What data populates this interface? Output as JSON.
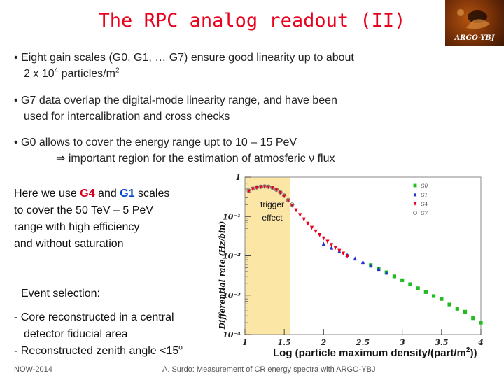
{
  "slide": {
    "title": "The RPC analog readout (II)",
    "logo_text": "ARGO-YBJ",
    "bullets": {
      "b1_line1_pre": "• Eight gain scales (G0, G1, … G7) ensure good linearity up to about",
      "b1_line2_pre": "2 x 10",
      "b1_line2_exp": "4",
      "b1_line2_post": " particles/m",
      "b1_line2_exp2": "2",
      "b2_line1": "• G7 data overlap the digital-mode linearity range, and have been",
      "b2_line2": "used for intercalibration and cross checks",
      "b3_line1": "• G0 allows to cover  the energy range upt to 10 – 15 PeV",
      "b3_line2_arrow": "⇒",
      "b3_line2": " important region for the estimation of atmosferic ν flux"
    },
    "left_block": {
      "p1_a": "Here we use ",
      "g4": "G4",
      "p1_b": " and ",
      "g1": "G1",
      "p1_c": " scales",
      "line2": "to cover the 50 TeV – 5 PeV",
      "line3": "range with high efficiency",
      "line4": "and without saturation"
    },
    "selection": {
      "heading": "Event selection:",
      "line1": "- Core reconstructed in a central",
      "line2": "detector fiducial area",
      "line3_pre": "- Reconstructed zenith angle <15",
      "line3_sup": "o"
    },
    "footer": {
      "left": "NOW-2014",
      "center": "A. Surdo: Measurement of CR energy spectra with ARGO-YBJ"
    },
    "xlabel_pre": "Log (particle maximum density/(part/m",
    "xlabel_sup": "2",
    "xlabel_post": "))"
  },
  "chart_data": {
    "type": "scatter",
    "ylabel": "Differential rate (Hz/bin)",
    "yscale": "log",
    "ylim": [
      0.0001,
      1
    ],
    "xlim": [
      1,
      4
    ],
    "x_ticks": [
      "1",
      "1.5",
      "2",
      "2.5",
      "3",
      "3.5",
      "4"
    ],
    "y_ticks": [
      "1",
      "10⁻¹",
      "10⁻²",
      "10⁻³",
      "10⁻⁴"
    ],
    "annotation": "trigger effect",
    "annotation_line1": "trigger",
    "annotation_line2": "effect",
    "shaded_region_x": [
      1.0,
      1.57
    ],
    "legend_placement": "top-right",
    "series": [
      {
        "name": "G0",
        "marker": "square",
        "color": "#22bb22",
        "x": [
          2.6,
          2.7,
          2.8,
          2.9,
          3.0,
          3.1,
          3.2,
          3.3,
          3.4,
          3.5,
          3.6,
          3.7,
          3.8,
          3.9,
          4.0
        ],
        "y": [
          0.0058,
          0.0047,
          0.0038,
          0.003,
          0.0024,
          0.0019,
          0.0015,
          0.0012,
          0.00095,
          0.0008,
          0.00058,
          0.00045,
          0.00038,
          0.00026,
          0.0002
        ]
      },
      {
        "name": "G1",
        "marker": "triangle",
        "color": "#2233cc",
        "x": [
          2.0,
          2.1,
          2.2,
          2.3,
          2.4,
          2.5,
          2.6,
          2.7,
          2.8
        ],
        "y": [
          0.02,
          0.016,
          0.013,
          0.0105,
          0.0085,
          0.0069,
          0.0056,
          0.0046,
          0.0037
        ]
      },
      {
        "name": "G4",
        "marker": "triangle-down",
        "color": "#e8001c",
        "x": [
          1.05,
          1.1,
          1.15,
          1.2,
          1.25,
          1.3,
          1.35,
          1.4,
          1.45,
          1.5,
          1.55,
          1.6,
          1.65,
          1.7,
          1.75,
          1.8,
          1.85,
          1.9,
          1.95,
          2.0,
          2.05,
          2.1,
          2.15,
          2.2,
          2.25,
          2.3
        ],
        "y": [
          0.44,
          0.5,
          0.54,
          0.56,
          0.57,
          0.56,
          0.53,
          0.47,
          0.4,
          0.33,
          0.25,
          0.19,
          0.145,
          0.11,
          0.085,
          0.066,
          0.052,
          0.042,
          0.034,
          0.028,
          0.023,
          0.019,
          0.016,
          0.0135,
          0.0115,
          0.0098
        ]
      },
      {
        "name": "G7",
        "marker": "circle-open",
        "color": "#777777",
        "x": [
          1.05,
          1.1,
          1.15,
          1.2,
          1.25,
          1.3,
          1.35,
          1.4,
          1.45,
          1.5,
          1.55,
          1.6
        ],
        "y": [
          0.45,
          0.51,
          0.55,
          0.57,
          0.58,
          0.57,
          0.54,
          0.48,
          0.41,
          0.34,
          0.26,
          0.2
        ]
      }
    ]
  }
}
